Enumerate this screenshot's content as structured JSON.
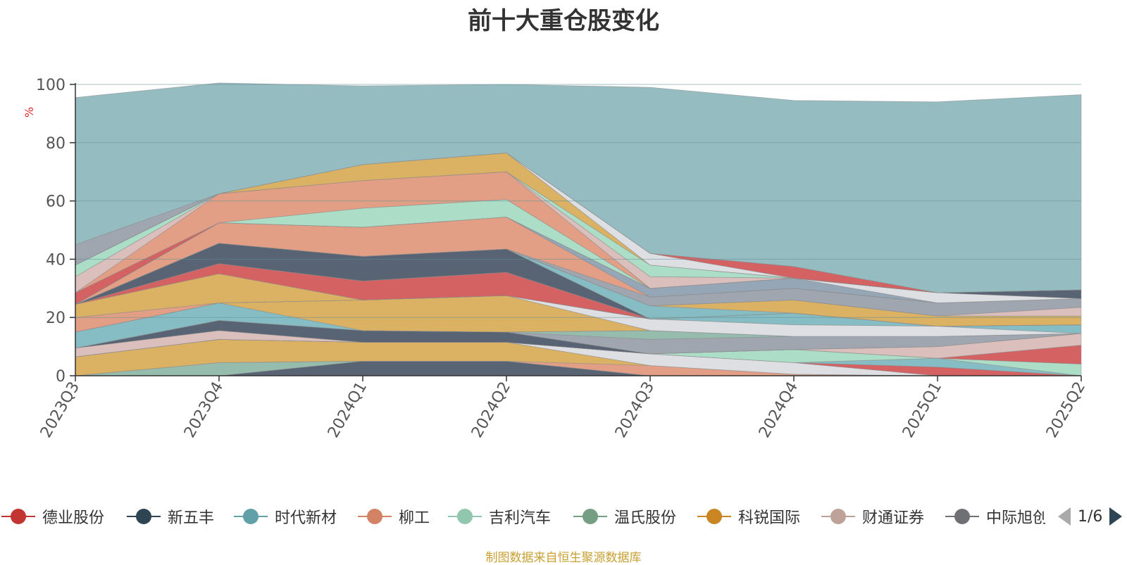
{
  "title": "前十大重仓股变化",
  "footer": "制图数据来自恒生聚源数据库",
  "pager": {
    "text": "1/6",
    "prev_icon": "triangle-left-icon",
    "next_icon": "triangle-right-icon"
  },
  "chart_data": {
    "type": "area",
    "title": "前十大重仓股变化",
    "ylabel": "%",
    "ylim": [
      0,
      100
    ],
    "y_ticks": [
      "0",
      "20",
      "40",
      "60",
      "80",
      "100"
    ],
    "categories": [
      "2023Q3",
      "2023Q4",
      "2024Q1",
      "2024Q2",
      "2024Q3",
      "2024Q4",
      "2025Q1",
      "2025Q2"
    ],
    "stacked": true,
    "legend_position": "bottom",
    "grid": true,
    "layers": [
      {
        "color": "#4f5b6b",
        "values": [
          0,
          0,
          5,
          5,
          0,
          0,
          0,
          0
        ]
      },
      {
        "color": "#8fb8a8",
        "values": [
          0,
          4.5,
          0,
          0,
          0,
          0,
          0,
          0
        ]
      },
      {
        "color": "#e09a7e",
        "values": [
          0,
          0,
          0,
          0,
          3.5,
          0.5,
          0,
          0
        ]
      },
      {
        "color": "#d9ad5c",
        "values": [
          6.5,
          8,
          6.5,
          6.5,
          0,
          0,
          0,
          0
        ]
      },
      {
        "color": "#dcdde2",
        "values": [
          0,
          0,
          0,
          0,
          4,
          4,
          0,
          0
        ]
      },
      {
        "color": "#d35a5a",
        "values": [
          0,
          0,
          0,
          0,
          0,
          0,
          3,
          0
        ]
      },
      {
        "color": "#7fb8c0",
        "values": [
          0,
          0,
          0,
          0,
          0,
          0,
          3,
          0
        ]
      },
      {
        "color": "#a8dbc4",
        "values": [
          0,
          0,
          0,
          0,
          0,
          4.5,
          0,
          4
        ]
      },
      {
        "color": "#d35a5a",
        "values": [
          0,
          0,
          0,
          0,
          0,
          0,
          0,
          6.5
        ]
      },
      {
        "color": "#d8bcb8",
        "values": [
          3,
          3,
          0,
          0,
          0,
          0,
          4,
          4
        ]
      },
      {
        "color": "#4f5b6b",
        "values": [
          0,
          3.5,
          4,
          3.5,
          0,
          0,
          0,
          0
        ]
      },
      {
        "color": "#9aa1ab",
        "values": [
          0,
          0,
          0,
          0,
          5,
          4.5,
          3.5,
          0
        ]
      },
      {
        "color": "#8fb8a8",
        "values": [
          0,
          0,
          0,
          0,
          3,
          0,
          0,
          0
        ]
      },
      {
        "color": "#7fb8c0",
        "values": [
          5.5,
          6,
          0,
          0,
          0,
          0,
          0,
          0
        ]
      },
      {
        "color": "#d9ad5c",
        "values": [
          0,
          0,
          10.5,
          12.5,
          0,
          0,
          0,
          0
        ]
      },
      {
        "color": "#dcdde2",
        "values": [
          0,
          0,
          0,
          0,
          4,
          4,
          3.5,
          0
        ]
      },
      {
        "color": "#7fb8c0",
        "values": [
          0,
          0,
          0,
          0,
          0,
          4,
          0,
          3
        ]
      },
      {
        "color": "#e09a7e",
        "values": [
          5,
          0,
          0,
          0,
          0,
          0,
          0,
          0
        ]
      },
      {
        "color": "#d9ad5c",
        "values": [
          4.5,
          10,
          0,
          0,
          0,
          0,
          0,
          0
        ]
      },
      {
        "color": "#d35a5a",
        "values": [
          0,
          3.5,
          6.5,
          8,
          0,
          0,
          0,
          0
        ]
      },
      {
        "color": "#4f5b6b",
        "values": [
          0,
          7,
          8.5,
          8,
          0,
          0,
          0,
          0
        ]
      },
      {
        "color": "#7fb8c0",
        "values": [
          0,
          0,
          0,
          0,
          4.5,
          0,
          0,
          0
        ]
      },
      {
        "color": "#d9ad5c",
        "values": [
          0,
          0,
          0,
          0,
          0,
          4.5,
          3.5,
          3
        ]
      },
      {
        "color": "#d8bcb8",
        "values": [
          0,
          0,
          0,
          0,
          0,
          0,
          0,
          3
        ]
      },
      {
        "color": "#9aa1ab",
        "values": [
          0,
          0,
          0,
          0,
          3,
          4,
          4.5,
          3
        ]
      },
      {
        "color": "#e09a7e",
        "values": [
          0,
          7,
          10,
          11,
          0,
          0,
          0,
          0
        ]
      },
      {
        "color": "#dcdde2",
        "values": [
          0,
          0,
          0,
          0,
          0,
          0,
          0,
          0
        ]
      },
      {
        "color": "#8fa1b3",
        "values": [
          0,
          0,
          0,
          0,
          3,
          3.5,
          0,
          0
        ]
      },
      {
        "color": "#dcdde2",
        "values": [
          0,
          0,
          0,
          0,
          0,
          0,
          3.5,
          0
        ]
      },
      {
        "color": "#4f5b6b",
        "values": [
          0,
          0,
          0,
          0,
          0,
          0,
          0,
          3
        ]
      },
      {
        "color": "#d35a5a",
        "values": [
          4,
          0,
          0,
          0,
          0,
          0,
          0,
          0
        ]
      },
      {
        "color": "#a8dbc4",
        "values": [
          0,
          0,
          6.5,
          6,
          0,
          0,
          0,
          0
        ]
      },
      {
        "color": "#e09a7e",
        "values": [
          0,
          10,
          9.5,
          9.5,
          0,
          0,
          0,
          0
        ]
      },
      {
        "color": "#d8bcb8",
        "values": [
          5.5,
          0,
          0,
          0,
          4,
          0,
          0,
          0
        ]
      },
      {
        "color": "#a8dbc4",
        "values": [
          4,
          0,
          0,
          0,
          4,
          0,
          0,
          0
        ]
      },
      {
        "color": "#d9ad5c",
        "values": [
          0,
          0,
          5.5,
          6.5,
          0,
          0,
          0,
          0
        ]
      },
      {
        "color": "#dcdde2",
        "values": [
          0,
          0,
          0,
          0,
          4,
          0,
          0,
          0
        ]
      },
      {
        "color": "#d35a5a",
        "values": [
          0,
          0,
          0,
          0,
          0,
          4,
          0,
          0
        ]
      },
      {
        "color": "#9aa1ab",
        "values": [
          7,
          0,
          0,
          0,
          0,
          0,
          0,
          0
        ]
      },
      {
        "color": "#8fb8be",
        "values": [
          50.5,
          38,
          27,
          23.5,
          57,
          57,
          65.5,
          67
        ]
      }
    ],
    "series": [
      {
        "name": "德业股份",
        "color": "#c23531"
      },
      {
        "name": "新五丰",
        "color": "#2f4554"
      },
      {
        "name": "时代新材",
        "color": "#61a0a8"
      },
      {
        "name": "柳工",
        "color": "#d48265"
      },
      {
        "name": "吉利汽车",
        "color": "#91c7ae"
      },
      {
        "name": "温氏股份",
        "color": "#749f83"
      },
      {
        "name": "科锐国际",
        "color": "#ca8622"
      },
      {
        "name": "财通证券",
        "color": "#bda29a"
      },
      {
        "name": "中际旭创",
        "color": "#6e7074"
      }
    ]
  }
}
